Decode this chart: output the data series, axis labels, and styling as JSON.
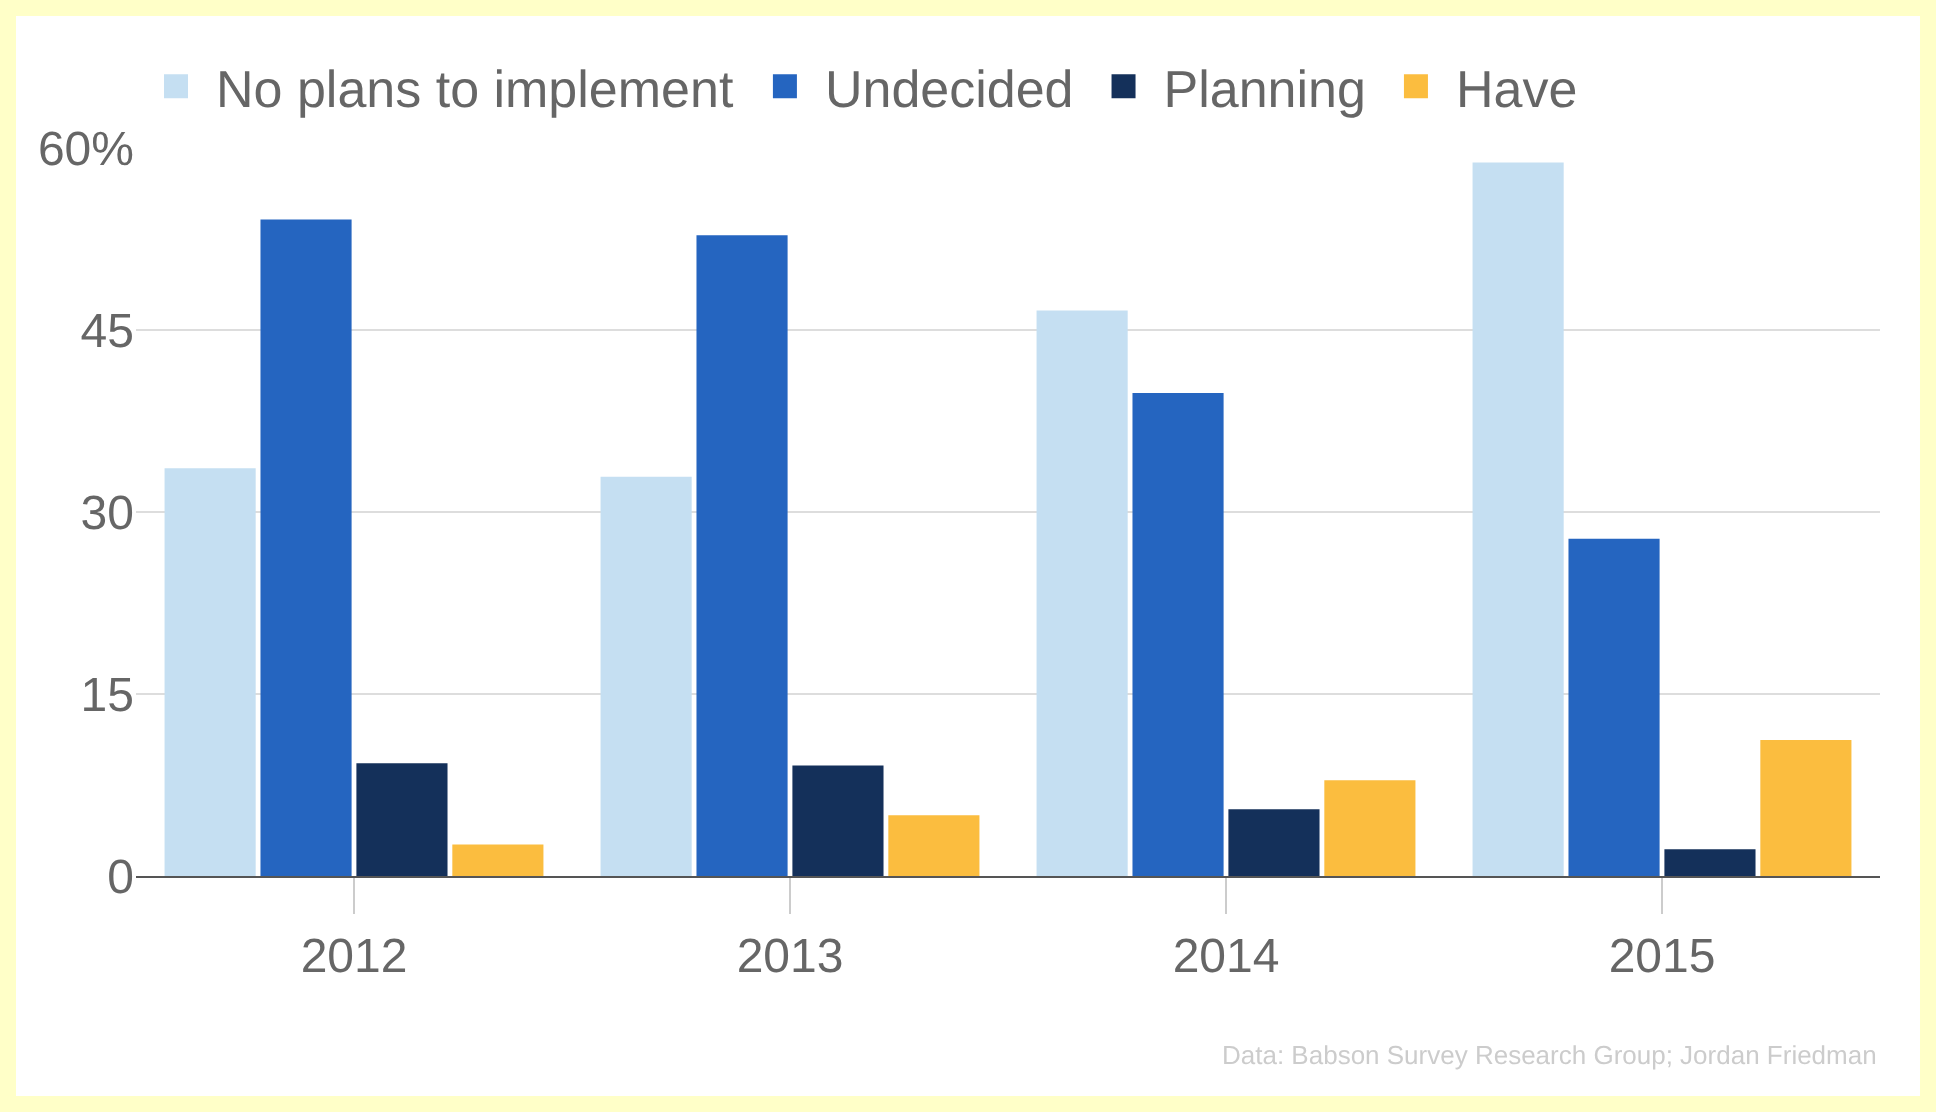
{
  "chart_data": {
    "type": "bar",
    "categories": [
      "2012",
      "2013",
      "2014",
      "2015"
    ],
    "series": [
      {
        "name": "No plans to implement",
        "color": "#c5dff2",
        "values": [
          33.6,
          32.9,
          46.6,
          58.8
        ]
      },
      {
        "name": "Undecided",
        "color": "#2565c0",
        "values": [
          54.1,
          52.8,
          39.8,
          27.8
        ]
      },
      {
        "name": "Planning",
        "color": "#14305a",
        "values": [
          9.3,
          9.1,
          5.5,
          2.2
        ]
      },
      {
        "name": "Have",
        "color": "#fbbd3f",
        "values": [
          2.6,
          5.0,
          7.9,
          11.2
        ]
      }
    ],
    "ylim": [
      0,
      60
    ],
    "yticks": [
      0,
      15,
      30,
      45,
      {
        "value": 60,
        "label": "60%"
      }
    ],
    "grid": "y",
    "legend": "top left",
    "annotations": [
      "Data: Babson Survey Research Group; Jordan Friedman"
    ]
  }
}
